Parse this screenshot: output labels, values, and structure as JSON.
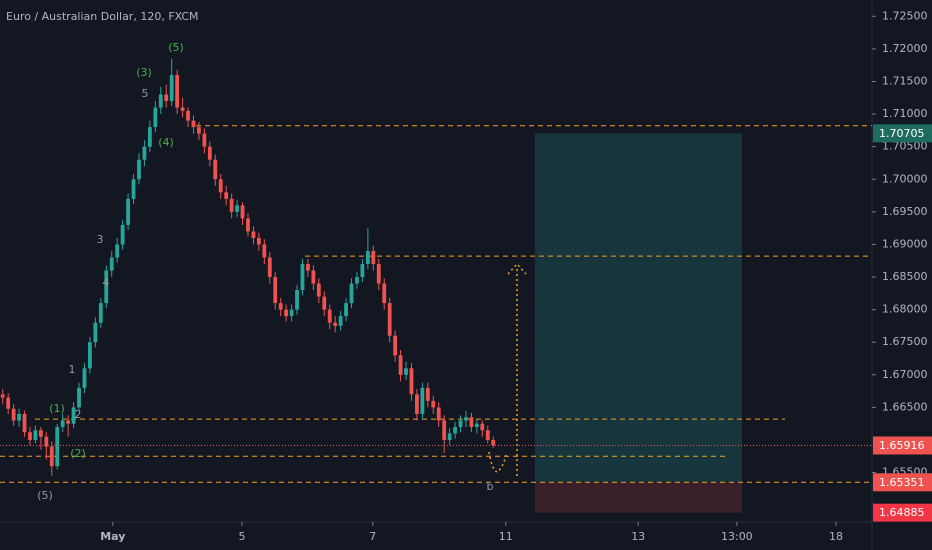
{
  "chart_data": {
    "type": "candlestick",
    "title": "Euro / Australian Dollar, 120, FXCM",
    "up_color": "#26a69a",
    "down_color": "#ef5350",
    "xlim": [
      0,
      160
    ],
    "xticks": [
      {
        "value": 20.7,
        "label": "May"
      },
      {
        "value": 44.4,
        "label": "5"
      },
      {
        "value": 68.4,
        "label": "7"
      },
      {
        "value": 92.8,
        "label": "11"
      },
      {
        "value": 117.1,
        "label": "13"
      },
      {
        "value": 135.2,
        "label": "13:00"
      },
      {
        "value": 153.4,
        "label": "18"
      }
    ],
    "ylim": [
      1.6465,
      1.7275
    ],
    "yticks": [
      {
        "value": 1.725,
        "label": "1.72500"
      },
      {
        "value": 1.72,
        "label": "1.72000"
      },
      {
        "value": 1.715,
        "label": "1.71500"
      },
      {
        "value": 1.71,
        "label": "1.71000"
      },
      {
        "value": 1.705,
        "label": "1.70500"
      },
      {
        "value": 1.7,
        "label": "1.70000"
      },
      {
        "value": 1.695,
        "label": "1.69500"
      },
      {
        "value": 1.69,
        "label": "1.69000"
      },
      {
        "value": 1.685,
        "label": "1.68500"
      },
      {
        "value": 1.68,
        "label": "1.68000"
      },
      {
        "value": 1.675,
        "label": "1.67500"
      },
      {
        "value": 1.67,
        "label": "1.67000"
      },
      {
        "value": 1.665,
        "label": "1.66500"
      },
      {
        "value": 1.655,
        "label": "1.65500"
      }
    ],
    "ohlc": [
      [
        1.667,
        1.6678,
        1.6655,
        1.6665
      ],
      [
        1.6665,
        1.6672,
        1.664,
        1.6648
      ],
      [
        1.6648,
        1.6655,
        1.6622,
        1.663
      ],
      [
        1.663,
        1.6648,
        1.662,
        1.664
      ],
      [
        1.664,
        1.6645,
        1.6605,
        1.6612
      ],
      [
        1.6612,
        1.662,
        1.6592,
        1.66
      ],
      [
        1.66,
        1.6622,
        1.6595,
        1.6615
      ],
      [
        1.6615,
        1.662,
        1.6585,
        1.6605
      ],
      [
        1.6605,
        1.6612,
        1.657,
        1.659
      ],
      [
        1.659,
        1.6598,
        1.6545,
        1.656
      ],
      [
        1.656,
        1.6625,
        1.6555,
        1.662
      ],
      [
        1.662,
        1.664,
        1.6612,
        1.663
      ],
      [
        1.663,
        1.6638,
        1.6605,
        1.6625
      ],
      [
        1.6625,
        1.6658,
        1.6618,
        1.665
      ],
      [
        1.665,
        1.6688,
        1.6645,
        1.668
      ],
      [
        1.668,
        1.6718,
        1.6672,
        1.671
      ],
      [
        1.671,
        1.6758,
        1.6702,
        1.675
      ],
      [
        1.675,
        1.6788,
        1.6742,
        1.678
      ],
      [
        1.678,
        1.6818,
        1.6772,
        1.681
      ],
      [
        1.681,
        1.6868,
        1.6802,
        1.686
      ],
      [
        1.686,
        1.689,
        1.685,
        1.688
      ],
      [
        1.688,
        1.691,
        1.6872,
        1.69
      ],
      [
        1.69,
        1.6938,
        1.6892,
        1.693
      ],
      [
        1.693,
        1.6978,
        1.6922,
        1.697
      ],
      [
        1.697,
        1.7008,
        1.6962,
        1.7
      ],
      [
        1.7,
        1.704,
        1.6992,
        1.703
      ],
      [
        1.703,
        1.706,
        1.702,
        1.705
      ],
      [
        1.705,
        1.709,
        1.7042,
        1.708
      ],
      [
        1.708,
        1.712,
        1.7072,
        1.711
      ],
      [
        1.711,
        1.7142,
        1.71,
        1.713
      ],
      [
        1.713,
        1.7145,
        1.711,
        1.712
      ],
      [
        1.712,
        1.7185,
        1.7112,
        1.716
      ],
      [
        1.716,
        1.7168,
        1.71,
        1.711
      ],
      [
        1.711,
        1.7125,
        1.7095,
        1.7105
      ],
      [
        1.7105,
        1.711,
        1.708,
        1.709
      ],
      [
        1.709,
        1.7098,
        1.707,
        1.708
      ],
      [
        1.708,
        1.7088,
        1.706,
        1.707
      ],
      [
        1.707,
        1.7078,
        1.704,
        1.705
      ],
      [
        1.705,
        1.7058,
        1.702,
        1.703
      ],
      [
        1.703,
        1.7038,
        1.699,
        1.7
      ],
      [
        1.7,
        1.7008,
        1.697,
        1.698
      ],
      [
        1.698,
        1.699,
        1.696,
        1.697
      ],
      [
        1.697,
        1.6978,
        1.694,
        1.695
      ],
      [
        1.695,
        1.6968,
        1.6942,
        1.696
      ],
      [
        1.696,
        1.6965,
        1.693,
        1.694
      ],
      [
        1.694,
        1.6948,
        1.6912,
        1.692
      ],
      [
        1.692,
        1.6928,
        1.69,
        1.691
      ],
      [
        1.691,
        1.6918,
        1.689,
        1.69
      ],
      [
        1.69,
        1.6908,
        1.687,
        1.688
      ],
      [
        1.688,
        1.6888,
        1.684,
        1.685
      ],
      [
        1.685,
        1.6858,
        1.68,
        1.681
      ],
      [
        1.681,
        1.6818,
        1.679,
        1.68
      ],
      [
        1.68,
        1.6808,
        1.6782,
        1.679
      ],
      [
        1.679,
        1.6808,
        1.6782,
        1.68
      ],
      [
        1.68,
        1.6838,
        1.6792,
        1.683
      ],
      [
        1.683,
        1.6878,
        1.6822,
        1.687
      ],
      [
        1.687,
        1.6878,
        1.685,
        1.686
      ],
      [
        1.686,
        1.6868,
        1.683,
        1.684
      ],
      [
        1.684,
        1.6848,
        1.681,
        1.682
      ],
      [
        1.682,
        1.6828,
        1.679,
        1.68
      ],
      [
        1.68,
        1.6808,
        1.677,
        1.678
      ],
      [
        1.678,
        1.679,
        1.6765,
        1.6775
      ],
      [
        1.6775,
        1.6798,
        1.6768,
        1.679
      ],
      [
        1.679,
        1.6818,
        1.6782,
        1.681
      ],
      [
        1.681,
        1.6848,
        1.6802,
        1.684
      ],
      [
        1.684,
        1.6858,
        1.6832,
        1.685
      ],
      [
        1.685,
        1.6878,
        1.6842,
        1.687
      ],
      [
        1.687,
        1.6925,
        1.6862,
        1.689
      ],
      [
        1.689,
        1.6898,
        1.686,
        1.687
      ],
      [
        1.687,
        1.6878,
        1.683,
        1.684
      ],
      [
        1.684,
        1.6848,
        1.68,
        1.681
      ],
      [
        1.681,
        1.6818,
        1.675,
        1.676
      ],
      [
        1.676,
        1.6768,
        1.672,
        1.673
      ],
      [
        1.673,
        1.6738,
        1.669,
        1.67
      ],
      [
        1.67,
        1.672,
        1.6692,
        1.671
      ],
      [
        1.671,
        1.6718,
        1.666,
        1.667
      ],
      [
        1.667,
        1.6678,
        1.663,
        1.664
      ],
      [
        1.664,
        1.6688,
        1.6632,
        1.668
      ],
      [
        1.668,
        1.6688,
        1.665,
        1.666
      ],
      [
        1.666,
        1.6668,
        1.664,
        1.665
      ],
      [
        1.665,
        1.6658,
        1.662,
        1.663
      ],
      [
        1.663,
        1.6638,
        1.658,
        1.66
      ],
      [
        1.66,
        1.6618,
        1.6592,
        1.661
      ],
      [
        1.661,
        1.6628,
        1.6602,
        1.662
      ],
      [
        1.662,
        1.6638,
        1.6612,
        1.663
      ],
      [
        1.663,
        1.6645,
        1.662,
        1.6635
      ],
      [
        1.6635,
        1.6642,
        1.6612,
        1.662
      ],
      [
        1.662,
        1.6632,
        1.661,
        1.6625
      ],
      [
        1.6625,
        1.663,
        1.6605,
        1.6615
      ],
      [
        1.6615,
        1.6622,
        1.6595,
        1.66
      ],
      [
        1.66,
        1.6605,
        1.6588,
        1.6592
      ]
    ],
    "levels": [
      1.7082,
      1.6882,
      1.6632,
      1.6575
    ],
    "last_price": {
      "value": 1.65916,
      "label": "1.65916"
    },
    "position": {
      "target": {
        "value": 1.70705,
        "label": "1.70705"
      },
      "entry": {
        "value": 1.65351,
        "label": "1.65351"
      },
      "stop": {
        "value": 1.64885,
        "label": "1.64885"
      }
    },
    "annotations": [
      "(5)",
      "(3)",
      "5",
      "(4)",
      "3",
      "4",
      "1",
      "(1)",
      "2",
      "(2)",
      "(5)",
      "b"
    ]
  }
}
